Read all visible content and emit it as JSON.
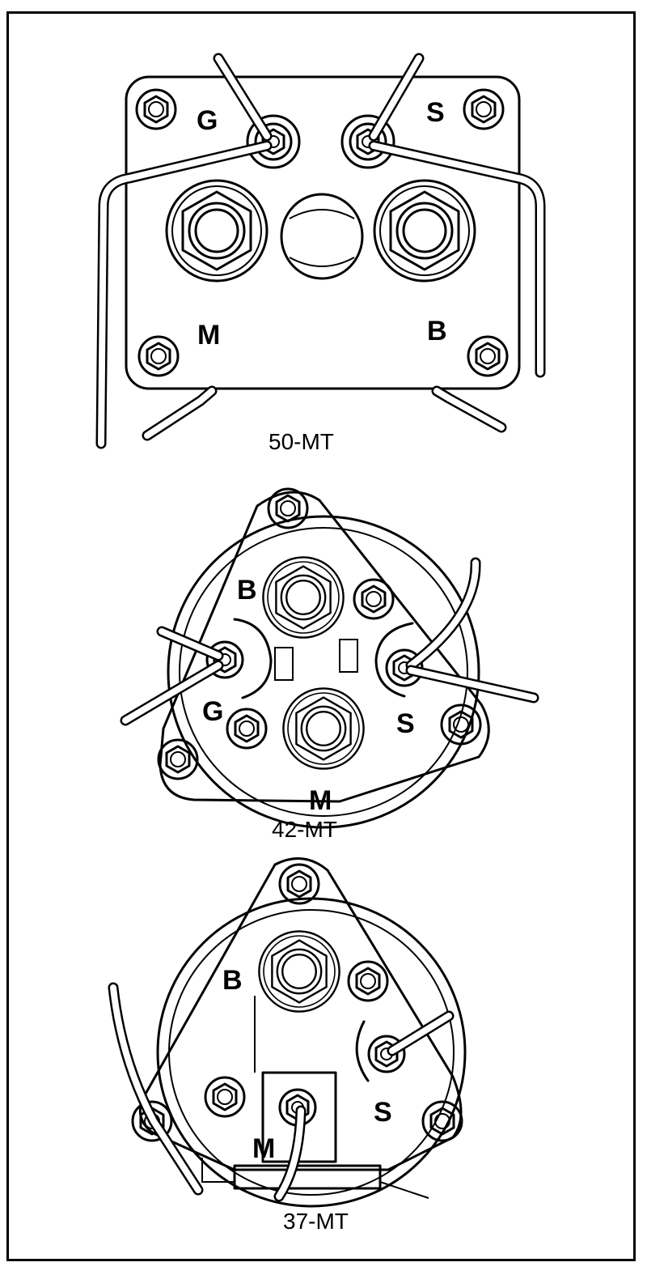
{
  "diagrams": [
    {
      "caption": "50-MT",
      "terminals": {
        "g": "G",
        "s": "S",
        "m": "M",
        "b": "B"
      }
    },
    {
      "caption": "42-MT",
      "terminals": {
        "b": "B",
        "g": "G",
        "s": "S",
        "m": "M"
      }
    },
    {
      "caption": "37-MT",
      "terminals": {
        "b": "B",
        "s": "S",
        "m": "M"
      }
    }
  ]
}
